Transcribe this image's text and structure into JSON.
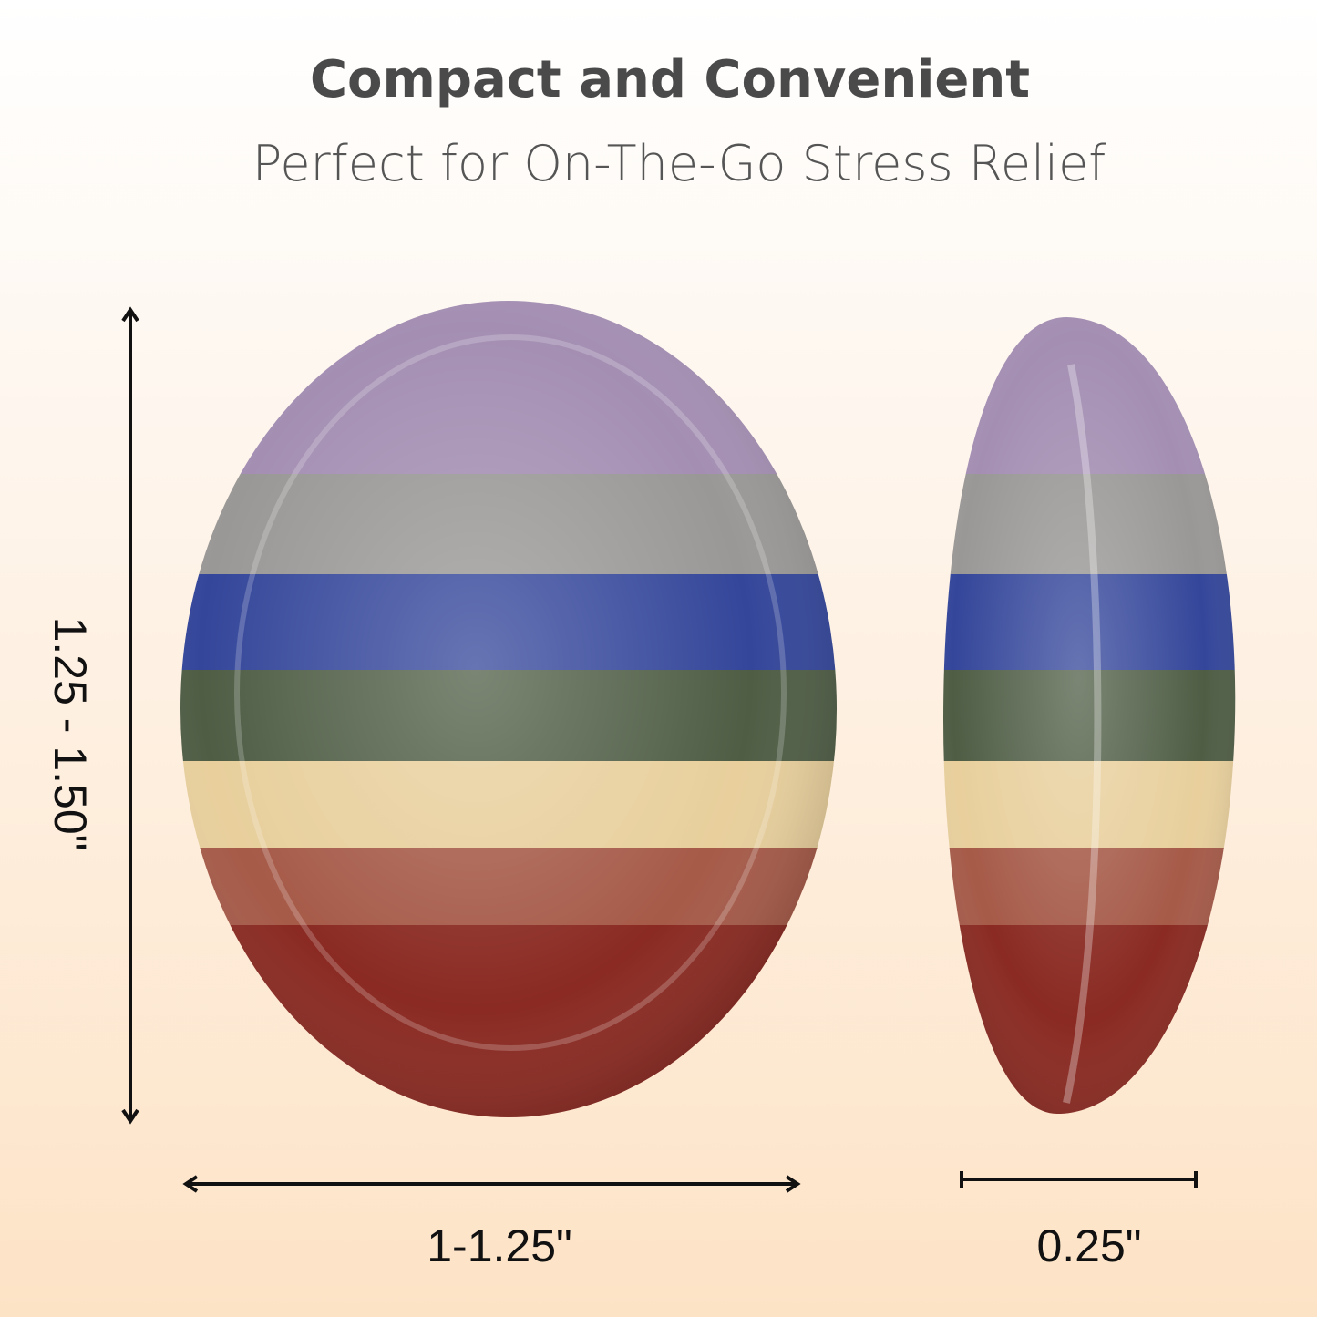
{
  "header": {
    "title": "Compact and Convenient",
    "subtitle": "Perfect for On-The-Go Stress Relief"
  },
  "dimensions": {
    "height": "1.25 - 1.50\"",
    "width": "1-1.25\"",
    "thickness": "0.25\""
  }
}
